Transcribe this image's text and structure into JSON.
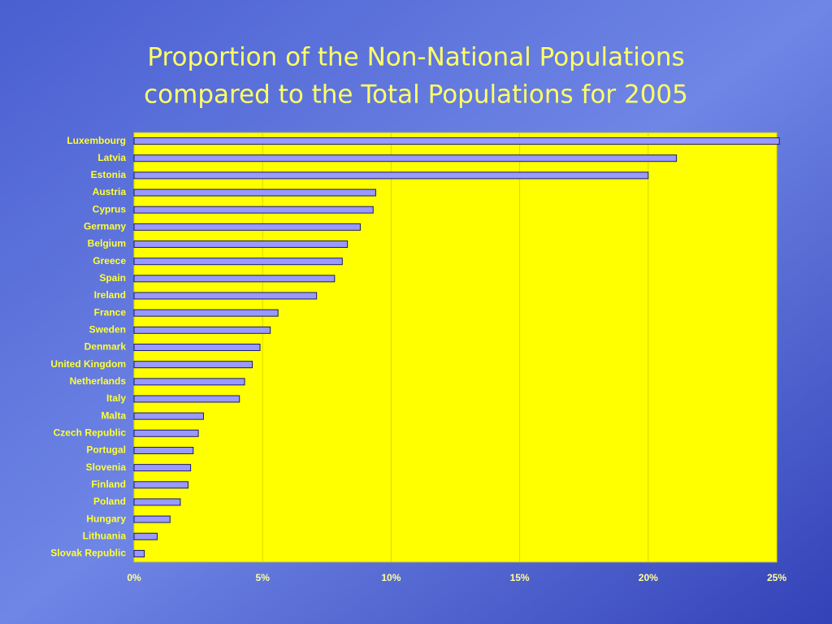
{
  "chart_data": {
    "type": "bar",
    "orientation": "horizontal",
    "title": [
      "Proportion of the Non-National Populations",
      "compared to the Total Populations for 2005"
    ],
    "categories": [
      "Luxembourg",
      "Latvia",
      "Estonia",
      "Austria",
      "Cyprus",
      "Germany",
      "Belgium",
      "Greece",
      "Spain",
      "Ireland",
      "France",
      "Sweden",
      "Denmark",
      "United Kingdom",
      "Netherlands",
      "Italy",
      "Malta",
      "Czech Republic",
      "Portugal",
      "Slovenia",
      "Finland",
      "Poland",
      "Hungary",
      "Lithuania",
      "Slovak Republic"
    ],
    "values": [
      25.1,
      21.1,
      20.0,
      9.4,
      9.3,
      8.8,
      8.3,
      8.1,
      7.8,
      7.1,
      5.6,
      5.3,
      4.9,
      4.6,
      4.3,
      4.1,
      2.7,
      2.5,
      2.3,
      2.2,
      2.1,
      1.8,
      1.4,
      0.9,
      0.4
    ],
    "color": "#9999ff",
    "xlim": [
      0,
      25
    ],
    "xticks": [
      {
        "value": 0,
        "label": "0%"
      },
      {
        "value": 5,
        "label": "5%"
      },
      {
        "value": 10,
        "label": "10%"
      },
      {
        "value": 15,
        "label": "15%"
      },
      {
        "value": 20,
        "label": "20%"
      },
      {
        "value": 25,
        "label": "25%"
      }
    ],
    "grid": true
  }
}
